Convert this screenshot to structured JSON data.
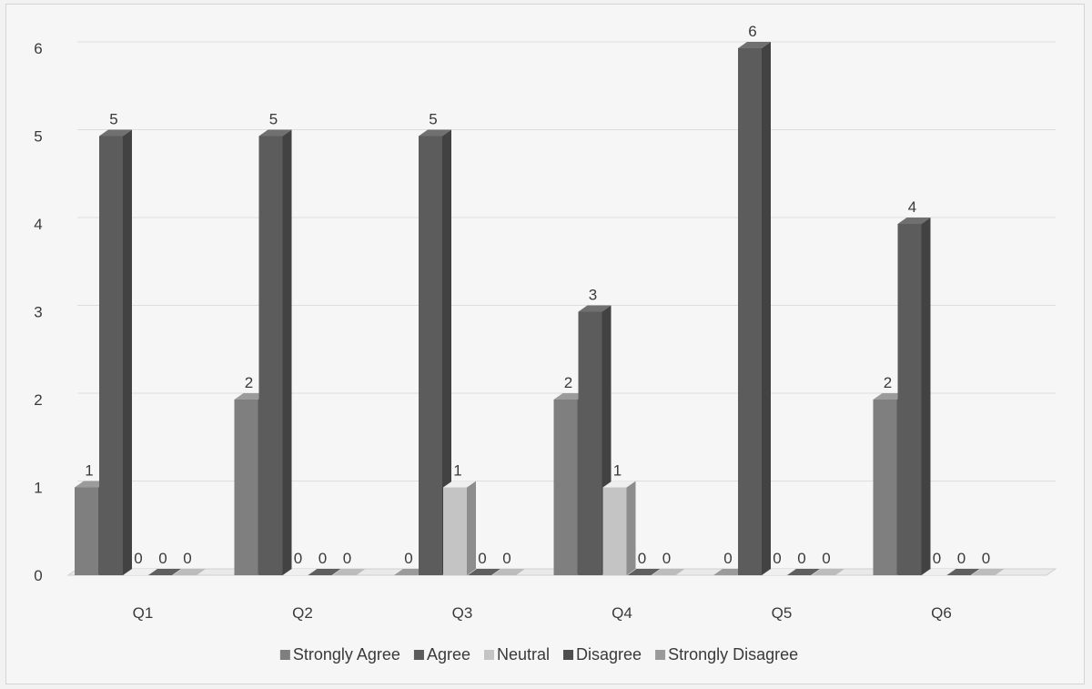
{
  "chart_data": {
    "type": "bar",
    "title": "",
    "xlabel": "",
    "ylabel": "",
    "categories": [
      "Q1",
      "Q2",
      "Q3",
      "Q4",
      "Q5",
      "Q6"
    ],
    "ylim": [
      0,
      6
    ],
    "yticks": [
      "0",
      "1",
      "2",
      "3",
      "4",
      "5",
      "6"
    ],
    "grid": true,
    "legend_position": "bottom",
    "series": [
      {
        "name": "Strongly Agree",
        "color": "#7f7f7f",
        "values": [
          1,
          2,
          0,
          2,
          0,
          2
        ]
      },
      {
        "name": "Agree",
        "color": "#5c5c5c",
        "values": [
          5,
          5,
          5,
          3,
          6,
          4
        ]
      },
      {
        "name": "Neutral",
        "color": "#c4c4c4",
        "values": [
          0,
          0,
          1,
          1,
          0,
          0
        ]
      },
      {
        "name": "Disagree",
        "color": "#4e4e4e",
        "values": [
          0,
          0,
          0,
          0,
          0,
          0
        ]
      },
      {
        "name": "Strongly Disagree",
        "color": "#9a9a9a",
        "values": [
          0,
          0,
          0,
          0,
          0,
          0
        ]
      }
    ]
  }
}
